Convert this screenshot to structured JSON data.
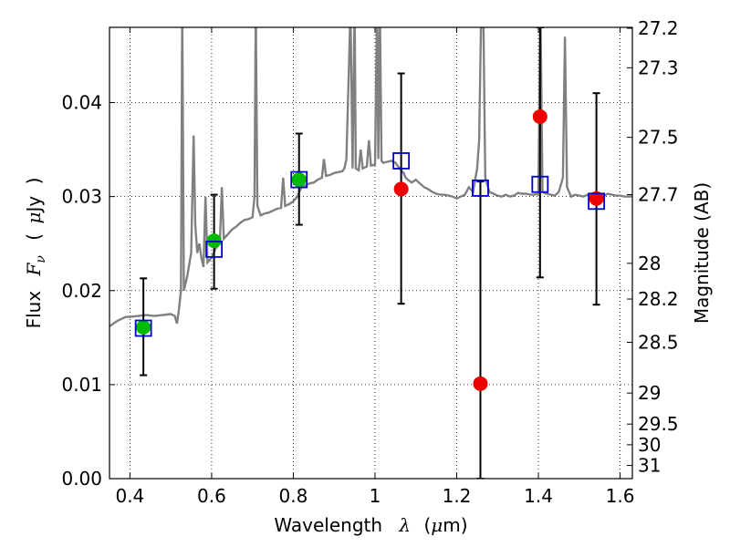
{
  "chart_data": {
    "type": "scatter",
    "title": "",
    "xlabel_parts": [
      "Wavelength",
      "λ",
      "(",
      "μ",
      "m)"
    ],
    "ylabel_parts": [
      "Flux",
      "F",
      "ν",
      "(",
      "μ",
      "Jy",
      ")"
    ],
    "y2label": "Magnitude (AB)",
    "xlim": [
      0.35,
      1.63
    ],
    "ylim": [
      0.0,
      0.048
    ],
    "grid": true,
    "grid_style": "dotted",
    "x_ticks": [
      0.4,
      0.6,
      0.8,
      1.0,
      1.2,
      1.4,
      1.6
    ],
    "x_tick_labels": [
      "0.4",
      "0.6",
      "0.8",
      "1",
      "1.2",
      "1.4",
      "1.6"
    ],
    "y_ticks": [
      0.0,
      0.01,
      0.02,
      0.03,
      0.04
    ],
    "y_tick_labels": [
      "0.00",
      "0.01",
      "0.02",
      "0.03",
      "0.04"
    ],
    "y2_ticks": [
      {
        "mag": "27.2",
        "flux": 0.0479
      },
      {
        "mag": "27.3",
        "flux": 0.0437
      },
      {
        "mag": "27.5",
        "flux": 0.0363
      },
      {
        "mag": "27.7",
        "flux": 0.0302
      },
      {
        "mag": "28",
        "flux": 0.0229
      },
      {
        "mag": "28.2",
        "flux": 0.0191
      },
      {
        "mag": "28.5",
        "flux": 0.0145
      },
      {
        "mag": "29",
        "flux": 0.0091
      },
      {
        "mag": "29.5",
        "flux": 0.0058
      },
      {
        "mag": "30",
        "flux": 0.0036
      },
      {
        "mag": "31",
        "flux": 0.0014
      }
    ],
    "colors": {
      "spectrum": "#808080",
      "green": "#00bb00",
      "red": "#ee0000",
      "model": "#0000cc",
      "errorbar": "#000000"
    },
    "spectrum": {
      "name": "",
      "points": [
        [
          0.35,
          0.0162
        ],
        [
          0.36,
          0.0165
        ],
        [
          0.37,
          0.0168
        ],
        [
          0.38,
          0.017
        ],
        [
          0.39,
          0.0172
        ],
        [
          0.4,
          0.0172
        ],
        [
          0.42,
          0.0173
        ],
        [
          0.44,
          0.0174
        ],
        [
          0.46,
          0.0173
        ],
        [
          0.48,
          0.0174
        ],
        [
          0.5,
          0.0175
        ],
        [
          0.51,
          0.0173
        ],
        [
          0.515,
          0.0165
        ],
        [
          0.52,
          0.018
        ],
        [
          0.525,
          0.02
        ],
        [
          0.528,
          0.05
        ],
        [
          0.532,
          0.02
        ],
        [
          0.54,
          0.0215
        ],
        [
          0.55,
          0.024
        ],
        [
          0.556,
          0.0365
        ],
        [
          0.56,
          0.027
        ],
        [
          0.565,
          0.024
        ],
        [
          0.57,
          0.025
        ],
        [
          0.575,
          0.0235
        ],
        [
          0.58,
          0.0225
        ],
        [
          0.585,
          0.03
        ],
        [
          0.59,
          0.023
        ],
        [
          0.6,
          0.0235
        ],
        [
          0.61,
          0.0245
        ],
        [
          0.62,
          0.025
        ],
        [
          0.625,
          0.031
        ],
        [
          0.63,
          0.0255
        ],
        [
          0.64,
          0.026
        ],
        [
          0.65,
          0.0265
        ],
        [
          0.66,
          0.0268
        ],
        [
          0.67,
          0.0272
        ],
        [
          0.68,
          0.0275
        ],
        [
          0.69,
          0.0276
        ],
        [
          0.7,
          0.0278
        ],
        [
          0.705,
          0.03
        ],
        [
          0.708,
          0.05
        ],
        [
          0.712,
          0.029
        ],
        [
          0.72,
          0.028
        ],
        [
          0.73,
          0.0282
        ],
        [
          0.74,
          0.0283
        ],
        [
          0.75,
          0.0285
        ],
        [
          0.76,
          0.0287
        ],
        [
          0.77,
          0.0288
        ],
        [
          0.775,
          0.032
        ],
        [
          0.78,
          0.029
        ],
        [
          0.79,
          0.0292
        ],
        [
          0.8,
          0.0295
        ],
        [
          0.81,
          0.03
        ],
        [
          0.82,
          0.031
        ],
        [
          0.83,
          0.0312
        ],
        [
          0.84,
          0.0314
        ],
        [
          0.85,
          0.0315
        ],
        [
          0.86,
          0.0318
        ],
        [
          0.87,
          0.032
        ],
        [
          0.875,
          0.034
        ],
        [
          0.88,
          0.0322
        ],
        [
          0.89,
          0.0323
        ],
        [
          0.9,
          0.0325
        ],
        [
          0.91,
          0.0326
        ],
        [
          0.92,
          0.0327
        ],
        [
          0.925,
          0.033
        ],
        [
          0.93,
          0.034
        ],
        [
          0.935,
          0.042
        ],
        [
          0.94,
          0.05
        ],
        [
          0.945,
          0.033
        ],
        [
          0.95,
          0.05
        ],
        [
          0.953,
          0.033
        ],
        [
          0.96,
          0.0328
        ],
        [
          0.965,
          0.035
        ],
        [
          0.97,
          0.033
        ],
        [
          0.98,
          0.0332
        ],
        [
          0.985,
          0.036
        ],
        [
          0.99,
          0.0333
        ],
        [
          1.0,
          0.0334
        ],
        [
          1.005,
          0.05
        ],
        [
          1.008,
          0.034
        ],
        [
          1.012,
          0.05
        ],
        [
          1.016,
          0.0338
        ],
        [
          1.02,
          0.0336
        ],
        [
          1.03,
          0.0337
        ],
        [
          1.04,
          0.0338
        ],
        [
          1.05,
          0.0336
        ],
        [
          1.06,
          0.033
        ],
        [
          1.07,
          0.0325
        ],
        [
          1.075,
          0.032
        ],
        [
          1.08,
          0.0318
        ],
        [
          1.09,
          0.0315
        ],
        [
          1.1,
          0.0318
        ],
        [
          1.11,
          0.0314
        ],
        [
          1.12,
          0.031
        ],
        [
          1.13,
          0.0308
        ],
        [
          1.14,
          0.0305
        ],
        [
          1.15,
          0.0303
        ],
        [
          1.16,
          0.0302
        ],
        [
          1.17,
          0.0302
        ],
        [
          1.18,
          0.0301
        ],
        [
          1.19,
          0.03
        ],
        [
          1.2,
          0.0298
        ],
        [
          1.21,
          0.03
        ],
        [
          1.22,
          0.0302
        ],
        [
          1.23,
          0.031
        ],
        [
          1.24,
          0.0305
        ],
        [
          1.25,
          0.033
        ],
        [
          1.255,
          0.036
        ],
        [
          1.26,
          0.05
        ],
        [
          1.265,
          0.05
        ],
        [
          1.27,
          0.032
        ],
        [
          1.28,
          0.0305
        ],
        [
          1.29,
          0.0303
        ],
        [
          1.3,
          0.0301
        ],
        [
          1.31,
          0.03
        ],
        [
          1.32,
          0.0302
        ],
        [
          1.33,
          0.03
        ],
        [
          1.34,
          0.0301
        ],
        [
          1.35,
          0.0304
        ],
        [
          1.36,
          0.0303
        ],
        [
          1.37,
          0.0303
        ],
        [
          1.38,
          0.0302
        ],
        [
          1.39,
          0.0302
        ],
        [
          1.4,
          0.0303
        ],
        [
          1.405,
          0.05
        ],
        [
          1.41,
          0.0305
        ],
        [
          1.42,
          0.0303
        ],
        [
          1.43,
          0.0302
        ],
        [
          1.44,
          0.0301
        ],
        [
          1.45,
          0.0305
        ],
        [
          1.46,
          0.032
        ],
        [
          1.465,
          0.047
        ],
        [
          1.47,
          0.031
        ],
        [
          1.48,
          0.03
        ],
        [
          1.49,
          0.0302
        ],
        [
          1.5,
          0.0301
        ],
        [
          1.51,
          0.03
        ],
        [
          1.52,
          0.0302
        ],
        [
          1.53,
          0.0303
        ],
        [
          1.54,
          0.0302
        ],
        [
          1.55,
          0.0302
        ],
        [
          1.56,
          0.0301
        ],
        [
          1.57,
          0.0303
        ],
        [
          1.58,
          0.0302
        ],
        [
          1.59,
          0.0301
        ],
        [
          1.6,
          0.0301
        ],
        [
          1.61,
          0.03
        ],
        [
          1.62,
          0.03
        ],
        [
          1.63,
          0.03
        ]
      ]
    },
    "series": [
      {
        "marker": "circle",
        "color_key": "green",
        "points": [
          {
            "x": 0.433,
            "y": 0.0161
          },
          {
            "x": 0.606,
            "y": 0.0253
          },
          {
            "x": 0.814,
            "y": 0.0318
          }
        ]
      },
      {
        "marker": "circle",
        "color_key": "red",
        "points": [
          {
            "x": 1.064,
            "y": 0.0308
          },
          {
            "x": 1.258,
            "y": 0.0101
          },
          {
            "x": 1.404,
            "y": 0.0385
          },
          {
            "x": 1.542,
            "y": 0.0298
          }
        ]
      },
      {
        "marker": "open-square",
        "color_key": "model",
        "points": [
          {
            "x": 0.433,
            "y": 0.016
          },
          {
            "x": 0.606,
            "y": 0.0244
          },
          {
            "x": 0.814,
            "y": 0.0318
          },
          {
            "x": 1.064,
            "y": 0.0338
          },
          {
            "x": 1.258,
            "y": 0.0309
          },
          {
            "x": 1.404,
            "y": 0.0313
          },
          {
            "x": 1.542,
            "y": 0.0295
          }
        ]
      }
    ],
    "error_bars": [
      {
        "x": 0.433,
        "y": 0.0161,
        "lo": 0.011,
        "hi": 0.0213
      },
      {
        "x": 0.606,
        "y": 0.0253,
        "lo": 0.0202,
        "hi": 0.0302
      },
      {
        "x": 0.814,
        "y": 0.0318,
        "lo": 0.027,
        "hi": 0.0367
      },
      {
        "x": 1.064,
        "y": 0.0308,
        "lo": 0.0186,
        "hi": 0.0431
      },
      {
        "x": 1.258,
        "y": 0.0101,
        "lo": 0.0,
        "hi": 0.0316
      },
      {
        "x": 1.404,
        "y": 0.0385,
        "lo": 0.0214,
        "hi": 0.048
      },
      {
        "x": 1.542,
        "y": 0.0298,
        "lo": 0.0185,
        "hi": 0.041
      }
    ]
  }
}
